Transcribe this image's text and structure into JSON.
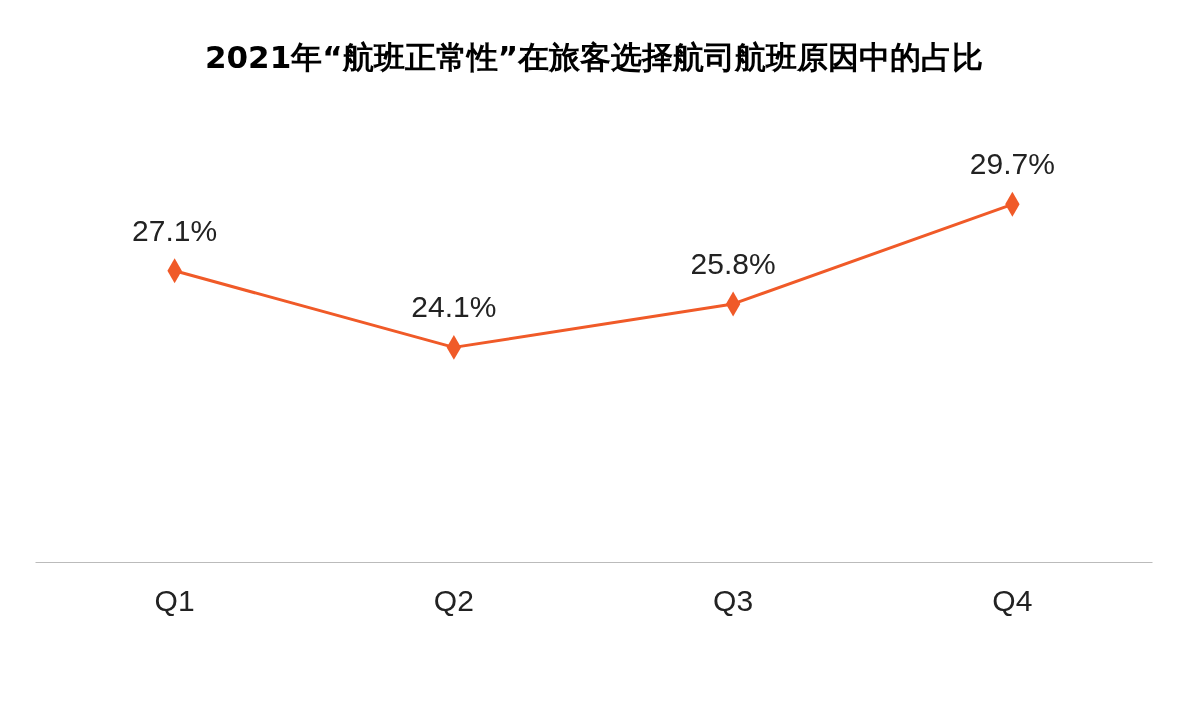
{
  "chart_data": {
    "type": "line",
    "title": "2021年“航班正常性”在旅客选择航司航班原因中的占比",
    "categories": [
      "Q1",
      "Q2",
      "Q3",
      "Q4"
    ],
    "series": [
      {
        "color": "#f05a28",
        "values": [
          27.1,
          24.1,
          25.8,
          29.7
        ],
        "value_labels": [
          "27.1%",
          "24.1%",
          "25.8%",
          "29.7%"
        ]
      }
    ],
    "marker": "diamond",
    "grid": false,
    "tick_labels": "x"
  }
}
